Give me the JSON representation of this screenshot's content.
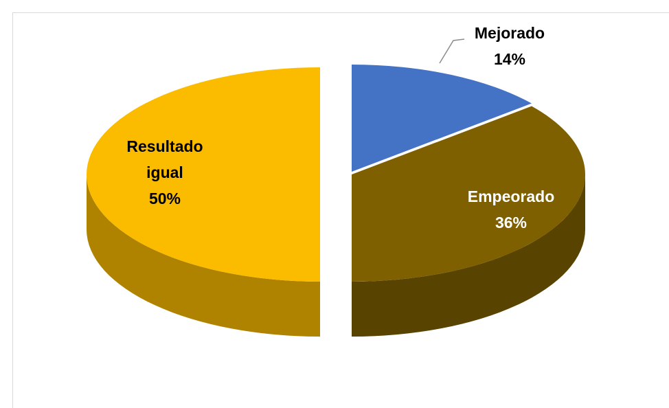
{
  "chart_data": {
    "type": "pie",
    "categories": [
      "Mejorado",
      "Empeorado",
      "Resultado igual"
    ],
    "values": [
      14,
      36,
      50
    ],
    "value_labels": [
      "14%",
      "36%",
      "50%"
    ],
    "colors": [
      "#4472c4",
      "#7f6000",
      "#fbbc00"
    ]
  }
}
